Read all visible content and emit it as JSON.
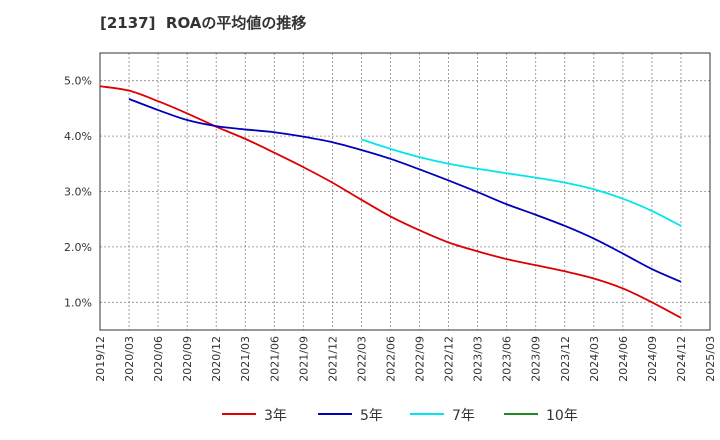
{
  "chart_data": {
    "type": "line",
    "title": "[2137]  ROAの平均値の推移",
    "xlabel": "",
    "ylabel": "",
    "x": [
      "2019/12",
      "2020/03",
      "2020/06",
      "2020/09",
      "2020/12",
      "2021/03",
      "2021/06",
      "2021/09",
      "2021/12",
      "2022/03",
      "2022/06",
      "2022/09",
      "2022/12",
      "2023/03",
      "2023/06",
      "2023/09",
      "2023/12",
      "2024/03",
      "2024/06",
      "2024/09",
      "2024/12",
      "2025/03"
    ],
    "ylim": [
      0.5,
      5.5
    ],
    "yticks": [
      1.0,
      2.0,
      3.0,
      4.0,
      5.0
    ],
    "ytick_labels": [
      "1.0%",
      "2.0%",
      "3.0%",
      "4.0%",
      "5.0%"
    ],
    "grid": true,
    "legend_position": "bottom",
    "series": [
      {
        "name": "3年",
        "color": "#dd0000",
        "values": [
          4.9,
          4.82,
          4.63,
          4.41,
          4.17,
          3.95,
          3.7,
          3.44,
          3.16,
          2.85,
          2.55,
          2.3,
          2.08,
          1.92,
          1.78,
          1.67,
          1.56,
          1.43,
          1.25,
          1.0,
          0.72,
          null
        ]
      },
      {
        "name": "5年",
        "color": "#0000bb",
        "values": [
          null,
          4.67,
          4.47,
          4.29,
          4.18,
          4.12,
          4.07,
          3.99,
          3.89,
          3.75,
          3.59,
          3.4,
          3.2,
          2.99,
          2.77,
          2.58,
          2.38,
          2.15,
          1.88,
          1.6,
          1.37,
          null
        ]
      },
      {
        "name": "7年",
        "color": "#00e5ee",
        "values": [
          null,
          null,
          null,
          null,
          null,
          null,
          null,
          null,
          null,
          3.94,
          3.77,
          3.62,
          3.5,
          3.41,
          3.33,
          3.25,
          3.16,
          3.04,
          2.87,
          2.65,
          2.38,
          null
        ]
      },
      {
        "name": "10年",
        "color": "#228822",
        "values": [
          null,
          null,
          null,
          null,
          null,
          null,
          null,
          null,
          null,
          null,
          null,
          null,
          null,
          null,
          null,
          null,
          null,
          null,
          null,
          null,
          null,
          null
        ]
      }
    ]
  }
}
